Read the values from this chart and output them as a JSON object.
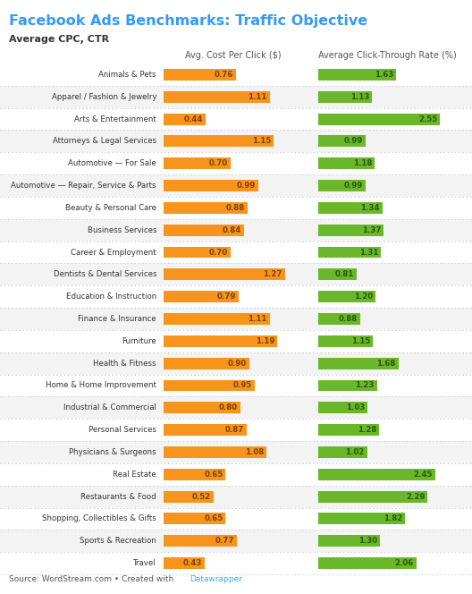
{
  "title": "Facebook Ads Benchmarks: Traffic Objective",
  "subtitle": "Average CPC, CTR",
  "col1_header": "Avg. Cost Per Click ($)",
  "col2_header": "Average Click-Through Rate (%)",
  "source": "Source: WordStream.com • Created with ",
  "source_link": "Datawrapper",
  "categories": [
    "Animals & Pets",
    "Apparel / Fashion & Jewelry",
    "Arts & Entertainment",
    "Attorneys & Legal Services",
    "Automotive — For Sale",
    "Automotive — Repair, Service & Parts",
    "Beauty & Personal Care",
    "Business Services",
    "Career & Employment",
    "Dentists & Dental Services",
    "Education & Instruction",
    "Finance & Insurance",
    "Furniture",
    "Health & Fitness",
    "Home & Home Improvement",
    "Industrial & Commercial",
    "Personal Services",
    "Physicians & Surgeons",
    "Real Estate",
    "Restaurants & Food",
    "Shopping, Collectibles & Gifts",
    "Sports & Recreation",
    "Travel"
  ],
  "cpc": [
    0.76,
    1.11,
    0.44,
    1.15,
    0.7,
    0.99,
    0.88,
    0.84,
    0.7,
    1.27,
    0.79,
    1.11,
    1.19,
    0.9,
    0.95,
    0.8,
    0.87,
    1.08,
    0.65,
    0.52,
    0.65,
    0.77,
    0.43
  ],
  "ctr": [
    1.63,
    1.13,
    2.55,
    0.99,
    1.18,
    0.99,
    1.34,
    1.37,
    1.31,
    0.81,
    1.2,
    0.88,
    1.15,
    1.68,
    1.23,
    1.03,
    1.28,
    1.02,
    2.45,
    2.29,
    1.82,
    1.3,
    2.06
  ],
  "cpc_max": 1.45,
  "ctr_max": 2.9,
  "orange_color": "#F7941D",
  "green_color": "#6AB72B",
  "title_color": "#3399FF",
  "text_color": "#333333",
  "header_color": "#555555",
  "source_link_color": "#44AAEE",
  "label_color_cpc": "#CC7700",
  "label_color_ctr": "#4A8A00"
}
